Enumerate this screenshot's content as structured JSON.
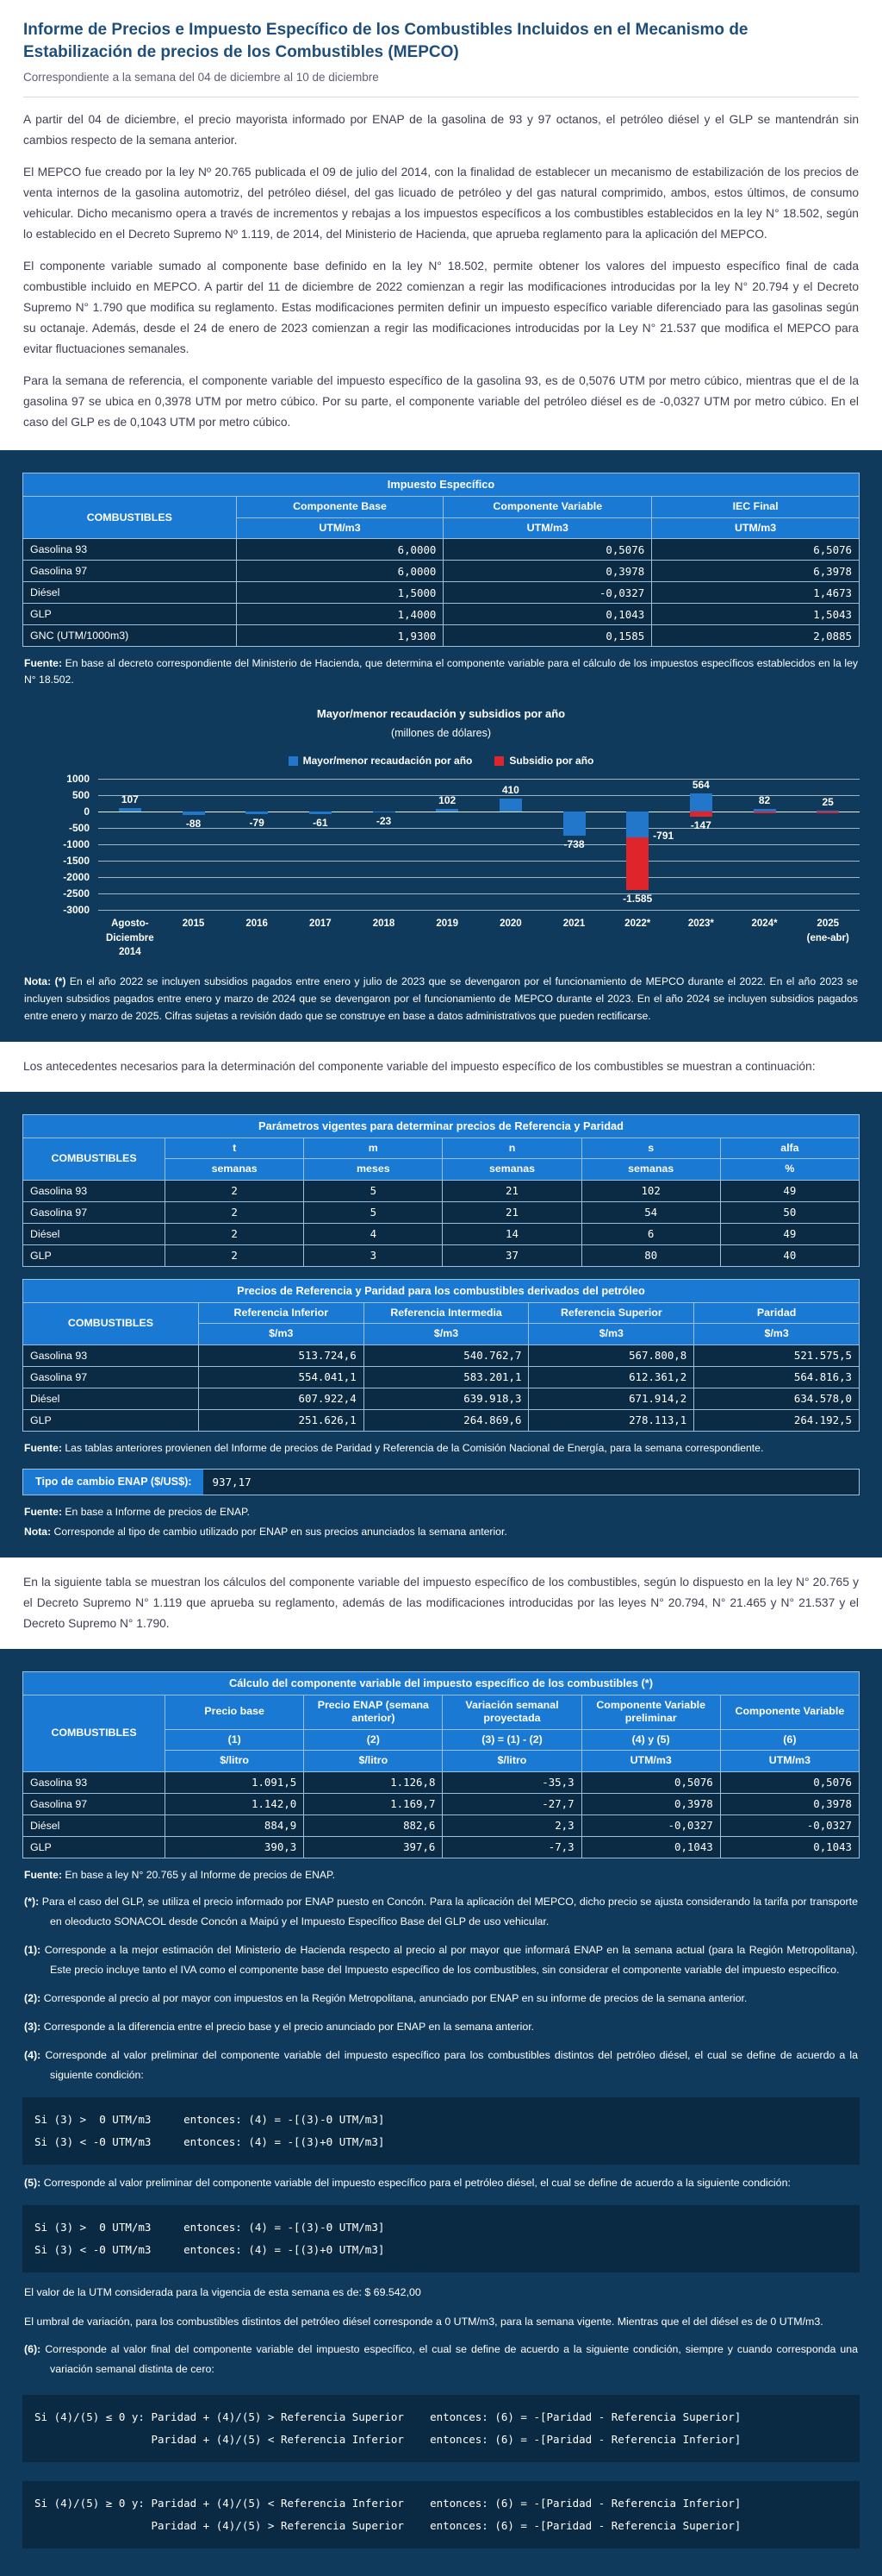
{
  "intro": {
    "title": "Informe de Precios e Impuesto Específico de los Combustibles Incluidos en el Mecanismo de Estabilización de precios de los Combustibles (MEPCO)",
    "subtitle": "Correspondiente a la semana del 04 de diciembre al 10 de diciembre",
    "paragraphs": [
      "A partir del 04 de diciembre, el precio mayorista informado por ENAP de la gasolina de 93 y 97 octanos, el petróleo diésel y el GLP se mantendrán sin cambios respecto de la semana anterior.",
      "El MEPCO fue creado por la ley Nº 20.765 publicada el 09 de julio del 2014, con la finalidad de establecer un mecanismo de estabilización de los precios de venta internos de la gasolina automotriz, del petróleo diésel, del gas licuado de petróleo y del gas natural comprimido, ambos, estos últimos, de consumo vehicular. Dicho mecanismo opera a través de incrementos y rebajas a los impuestos específicos a los combustibles establecidos en la ley N° 18.502, según lo establecido en el Decreto Supremo Nº 1.119, de 2014, del Ministerio de Hacienda, que aprueba reglamento para la aplicación del MEPCO.",
      "El componente variable sumado al componente base definido en la ley N° 18.502, permite obtener los valores del impuesto específico final de cada combustible incluido en MEPCO. A partir del 11 de diciembre de 2022 comienzan a regir las modificaciones introducidas por la ley N° 20.794 y el Decreto Supremo N° 1.790 que modifica su reglamento. Estas modificaciones permiten definir un impuesto específico variable diferenciado para las gasolinas según su octanaje. Además, desde el 24 de enero de 2023 comienzan a regir las modificaciones introducidas por la Ley N° 21.537 que modifica el MEPCO para evitar fluctuaciones semanales.",
      "Para la semana de referencia, el componente variable del impuesto específico de la gasolina 93, es de 0,5076 UTM por metro cúbico, mientras que el de la gasolina 97 se ubica en 0,3978 UTM por metro cúbico. Por su parte, el componente variable del petróleo diésel es de -0,0327 UTM por metro cúbico. En el caso del GLP es de 0,1043 UTM por metro cúbico."
    ]
  },
  "table_impuesto": {
    "title": "Impuesto Específico",
    "col_combustibles": "COMBUSTIBLES",
    "columns": [
      {
        "label": "Componente Base",
        "unit": "UTM/m3"
      },
      {
        "label": "Componente Variable",
        "unit": "UTM/m3"
      },
      {
        "label": "IEC Final",
        "unit": "UTM/m3"
      }
    ],
    "rows": [
      {
        "name": "Gasolina 93",
        "values": [
          "6,0000",
          "0,5076",
          "6,5076"
        ]
      },
      {
        "name": "Gasolina 97",
        "values": [
          "6,0000",
          "0,3978",
          "6,3978"
        ]
      },
      {
        "name": "Diésel",
        "values": [
          "1,5000",
          "-0,0327",
          "1,4673"
        ]
      },
      {
        "name": "GLP",
        "values": [
          "1,4000",
          "0,1043",
          "1,5043"
        ]
      },
      {
        "name": "GNC (UTM/1000m3)",
        "values": [
          "1,9300",
          "0,1585",
          "2,0885"
        ]
      }
    ],
    "fuente_label": "Fuente:",
    "fuente_text": "En base al decreto correspondiente del Ministerio de Hacienda, que determina el componente variable para el cálculo de los impuestos específicos establecidos en la ley N° 18.502."
  },
  "chart_data": {
    "type": "bar",
    "title": "Mayor/menor recaudación y subsidios por año",
    "subtitle": "(millones de dólares)",
    "categories": [
      "Agosto-\nDiciembre\n2014",
      "2015",
      "2016",
      "2017",
      "2018",
      "2019",
      "2020",
      "2021",
      "2022*",
      "2023*",
      "2024*",
      "2025\n(ene-abr)"
    ],
    "series": [
      {
        "name": "Mayor/menor recaudación por año",
        "color": "#2277cb",
        "values": [
          107,
          -88,
          -79,
          -61,
          -23,
          102,
          410,
          -738,
          -791,
          564,
          82,
          25
        ],
        "labels": [
          "107",
          "-88",
          "-79",
          "-61",
          "-23",
          "102",
          "410",
          "-738",
          "-791",
          "564",
          "82",
          "25"
        ]
      },
      {
        "name": "Subsidio por año",
        "color": "#e0242b",
        "values": [
          0,
          0,
          0,
          0,
          0,
          0,
          0,
          0,
          -1585,
          -147,
          -25,
          -20
        ],
        "labels": [
          "",
          "",
          "",
          "",
          "",
          "",
          "",
          "",
          "-1.585",
          "-147",
          "",
          ""
        ]
      }
    ],
    "ylim": [
      -3000,
      1000
    ],
    "ytick_step": 500,
    "grid": true,
    "legend_position": "top"
  },
  "chart_nota": {
    "label": "Nota: (*)",
    "text": "En el año 2022 se incluyen subsidios pagados entre enero y julio de 2023 que se devengaron por el funcionamiento de MEPCO durante el 2022. En el año 2023 se incluyen subsidios pagados entre enero y marzo de 2024 que se devengaron por el funcionamiento de MEPCO durante el 2023. En el año 2024 se incluyen subsidios pagados entre enero y marzo de 2025. Cifras sujetas a revisión dado que se construye en base a datos administrativos que pueden rectificarse."
  },
  "antecedentes_paragraph": "Los antecedentes necesarios para la determinación del componente variable del impuesto específico de los combustibles se muestran a continuación:",
  "table_parametros": {
    "title": "Parámetros vigentes para determinar precios de Referencia y Paridad",
    "col_combustibles": "COMBUSTIBLES",
    "columns": [
      {
        "label": "t",
        "unit": "semanas"
      },
      {
        "label": "m",
        "unit": "meses"
      },
      {
        "label": "n",
        "unit": "semanas"
      },
      {
        "label": "s",
        "unit": "semanas"
      },
      {
        "label": "alfa",
        "unit": "%"
      }
    ],
    "rows": [
      {
        "name": "Gasolina 93",
        "values": [
          "2",
          "5",
          "21",
          "102",
          "49"
        ]
      },
      {
        "name": "Gasolina 97",
        "values": [
          "2",
          "5",
          "21",
          "54",
          "50"
        ]
      },
      {
        "name": "Diésel",
        "values": [
          "2",
          "4",
          "14",
          "6",
          "49"
        ]
      },
      {
        "name": "GLP",
        "values": [
          "2",
          "3",
          "37",
          "80",
          "40"
        ]
      }
    ]
  },
  "table_referencia": {
    "title": "Precios de Referencia y Paridad para los combustibles derivados del petróleo",
    "col_combustibles": "COMBUSTIBLES",
    "columns": [
      {
        "label": "Referencia Inferior",
        "unit": "$/m3"
      },
      {
        "label": "Referencia Intermedia",
        "unit": "$/m3"
      },
      {
        "label": "Referencia Superior",
        "unit": "$/m3"
      },
      {
        "label": "Paridad",
        "unit": "$/m3"
      }
    ],
    "rows": [
      {
        "name": "Gasolina 93",
        "values": [
          "513.724,6",
          "540.762,7",
          "567.800,8",
          "521.575,5"
        ]
      },
      {
        "name": "Gasolina 97",
        "values": [
          "554.041,1",
          "583.201,1",
          "612.361,2",
          "564.816,3"
        ]
      },
      {
        "name": "Diésel",
        "values": [
          "607.922,4",
          "639.918,3",
          "671.914,2",
          "634.578,0"
        ]
      },
      {
        "name": "GLP",
        "values": [
          "251.626,1",
          "264.869,6",
          "278.113,1",
          "264.192,5"
        ]
      }
    ],
    "fuente_label": "Fuente:",
    "fuente_text": "Las tablas anteriores provienen del Informe de precios de Paridad y Referencia de la Comisión Nacional de Energía, para la semana correspondiente."
  },
  "tipo_cambio": {
    "label": "Tipo de cambio ENAP ($/US$):",
    "value": "937,17",
    "fuente_label": "Fuente:",
    "fuente_text": "En base a Informe de precios de ENAP.",
    "nota_label": "Nota:",
    "nota_text": "Corresponde al tipo de cambio utilizado por ENAP en sus precios anunciados la semana anterior."
  },
  "calculo_paragraph": "En la siguiente tabla se muestran los cálculos del componente variable del impuesto específico de los combustibles, según lo dispuesto en la ley N° 20.765 y el Decreto Supremo N° 1.119 que aprueba su reglamento, además de las modificaciones introducidas por las leyes N° 20.794, N° 21.465 y N° 21.537 y el Decreto Supremo N° 1.790.",
  "table_calculo": {
    "title": "Cálculo del componente variable del impuesto específico de los combustibles (*)",
    "col_combustibles": "COMBUSTIBLES",
    "columns": [
      {
        "label": "Precio base",
        "num": "(1)",
        "unit": "$/litro"
      },
      {
        "label": "Precio ENAP (semana anterior)",
        "num": "(2)",
        "unit": "$/litro"
      },
      {
        "label": "Variación semanal proyectada",
        "num": "(3) = (1) - (2)",
        "unit": "$/litro"
      },
      {
        "label": "Componente Variable preliminar",
        "num": "(4) y (5)",
        "unit": "UTM/m3"
      },
      {
        "label": "Componente Variable",
        "num": "(6)",
        "unit": "UTM/m3"
      }
    ],
    "rows": [
      {
        "name": "Gasolina 93",
        "values": [
          "1.091,5",
          "1.126,8",
          "-35,3",
          "0,5076",
          "0,5076"
        ]
      },
      {
        "name": "Gasolina 97",
        "values": [
          "1.142,0",
          "1.169,7",
          "-27,7",
          "0,3978",
          "0,3978"
        ]
      },
      {
        "name": "Diésel",
        "values": [
          "884,9",
          "882,6",
          "2,3",
          "-0,0327",
          "-0,0327"
        ]
      },
      {
        "name": "GLP",
        "values": [
          "390,3",
          "397,6",
          "-7,3",
          "0,1043",
          "0,1043"
        ]
      }
    ],
    "fuente_label": "Fuente:",
    "fuente_text": "En base a ley N° 20.765 y al Informe de precios de ENAP."
  },
  "footnotes": {
    "fn_star": {
      "label": "(*):",
      "text": "Para el caso del GLP, se utiliza el precio informado por ENAP puesto en Concón. Para la aplicación del MEPCO, dicho precio se ajusta considerando la tarifa por transporte en oleoducto SONACOL desde Concón a Maipú y el Impuesto Específico Base del GLP de uso vehicular."
    },
    "fn_1": {
      "label": "(1):",
      "text": "Corresponde a la mejor estimación del Ministerio de Hacienda respecto al precio al por mayor que informará ENAP en la semana actual (para la Región Metropolitana). Este precio incluye tanto el IVA como el componente base del Impuesto específico de los combustibles, sin considerar el componente variable del impuesto específico."
    },
    "fn_2": {
      "label": "(2):",
      "text": "Corresponde al precio al por mayor con impuestos en la Región Metropolitana, anunciado por ENAP en su informe de precios de la semana anterior."
    },
    "fn_3": {
      "label": "(3):",
      "text": "Corresponde a la diferencia entre el precio base y el precio anunciado por ENAP en la semana anterior."
    },
    "fn_4": {
      "label": "(4):",
      "text": "Corresponde al valor preliminar del componente variable del impuesto específico para los combustibles distintos del petróleo diésel, el cual se define de acuerdo a la siguiente condición:"
    },
    "fn_5": {
      "label": "(5):",
      "text": "Corresponde al valor preliminar del componente variable del impuesto específico para el petróleo diésel, el cual se define de acuerdo a la siguiente condición:"
    },
    "fn_6": {
      "label": "(6):",
      "text": "Corresponde al valor final del componente variable del impuesto específico, el cual se define de acuerdo a la siguiente condición, siempre y cuando corresponda una variación semanal distinta de cero:"
    }
  },
  "codes": {
    "cond4": "Si (3) >  Θ UTM/m3     entonces: (4) = -[(3)-Θ UTM/m3]\nSi (3) < -Θ UTM/m3     entonces: (4) = -[(3)+Θ UTM/m3]",
    "cond5": "Si (3) >  Θ UTM/m3     entonces: (4) = -[(3)-Θ UTM/m3]\nSi (3) < -Θ UTM/m3     entonces: (4) = -[(3)+Θ UTM/m3]",
    "cond6a": "Si (4)/(5) ≤ 0 y: Paridad + (4)/(5) > Referencia Superior    entonces: (6) = -[Paridad - Referencia Superior]\n                  Paridad + (4)/(5) < Referencia Inferior    entonces: (6) = -[Paridad - Referencia Inferior]",
    "cond6b": "Si (4)/(5) ≥ 0 y: Paridad + (4)/(5) < Referencia Inferior    entonces: (6) = -[Paridad - Referencia Inferior]\n                  Paridad + (4)/(5) > Referencia Superior    entonces: (6) = -[Paridad - Referencia Superior]"
  },
  "utm_line": "El valor de la UTM considerada para la vigencia de esta semana es de: $ 69.542,00",
  "umbral_line": "El umbral de variación, para los combustibles distintos del petróleo diésel corresponde a 0 UTM/m3, para la semana vigente. Mientras que el del diésel es de 0 UTM/m3."
}
